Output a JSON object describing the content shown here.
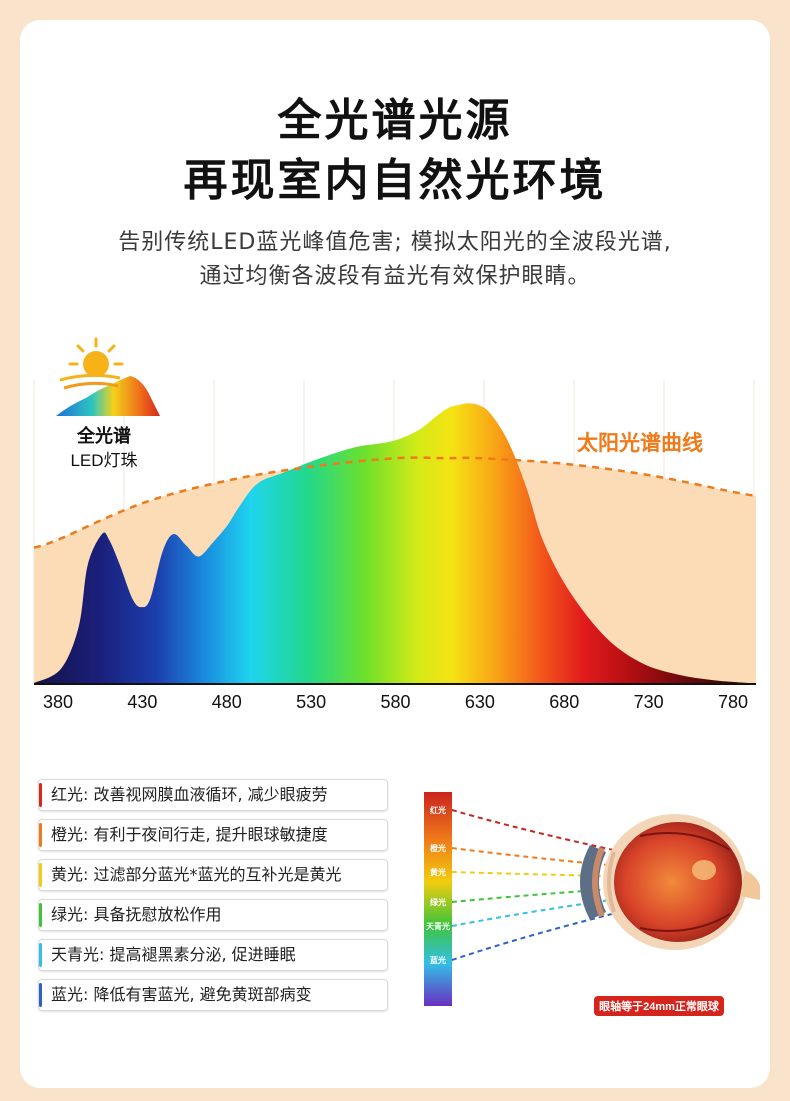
{
  "header": {
    "title_line1": "全光谱光源",
    "title_line2": "再现室内自然光环境",
    "subtitle_line1": "告别传统LED蓝光峰值危害; 模拟太阳光的全波段光谱,",
    "subtitle_line2": "通过均衡各波段有益光有效保护眼睛。"
  },
  "badge": {
    "line1": "全光谱",
    "line2": "LED灯珠"
  },
  "colors": {
    "page_bg": "#f9e3cb",
    "sun_curve": "#f07a1a",
    "sun_fill": "#fbdcb6",
    "sun_label": "#f07a1a"
  },
  "chart_data": {
    "type": "area",
    "x_ticks": [
      380,
      430,
      480,
      530,
      580,
      630,
      680,
      730,
      780
    ],
    "xlim": [
      380,
      780
    ],
    "ylim": [
      0,
      100
    ],
    "series": [
      {
        "name": "",
        "role": "full-spectrum LED",
        "x": [
          380,
          395,
          405,
          410,
          418,
          422,
          428,
          435,
          440,
          445,
          452,
          458,
          465,
          472,
          480,
          488,
          495,
          505,
          520,
          540,
          560,
          580,
          595,
          605,
          612,
          618,
          622,
          628,
          635,
          645,
          655,
          665,
          680,
          700,
          720,
          740,
          760,
          780
        ],
        "y": [
          0,
          5,
          20,
          42,
          53,
          51,
          42,
          30,
          27,
          30,
          47,
          53,
          49,
          45,
          50,
          56,
          63,
          71,
          75,
          80,
          84,
          86,
          90,
          95,
          98,
          99,
          99.5,
          99,
          96,
          86,
          70,
          50,
          32,
          16,
          7,
          3,
          1,
          0
        ]
      },
      {
        "name": "太阳光谱曲线",
        "role": "sunlight",
        "x": [
          380,
          430,
          480,
          530,
          580,
          610,
          630,
          680,
          730,
          780
        ],
        "y": [
          51,
          64,
          72,
          77,
          80,
          80,
          80,
          78,
          74,
          68
        ]
      }
    ],
    "annotations": [
      "太阳光谱曲线"
    ]
  },
  "legend": [
    {
      "text": "红光: 改善视网膜血液循环, 减少眼疲劳",
      "color": "#d72a1f"
    },
    {
      "text": "橙光: 有利于夜间行走, 提升眼球敏捷度",
      "color": "#f07a1a"
    },
    {
      "text": "黄光: 过滤部分蓝光*蓝光的互补光是黄光",
      "color": "#f2cc0f"
    },
    {
      "text": "绿光: 具备抚慰放松作用",
      "color": "#3fc43a"
    },
    {
      "text": "天青光: 提高褪黑素分泌, 促进睡眠",
      "color": "#33bfe6"
    },
    {
      "text": "蓝光: 降低有害蓝光, 避免黄斑部病变",
      "color": "#2c62c9"
    }
  ],
  "eye_diagram": {
    "bands": [
      {
        "label": "红光",
        "color": "#c8241d"
      },
      {
        "label": "橙光",
        "color": "#f07a1a"
      },
      {
        "label": "黄光",
        "color": "#f2cc0f"
      },
      {
        "label": "绿光",
        "color": "#3fc43a"
      },
      {
        "label": "天青光",
        "color": "#33bfe6"
      },
      {
        "label": "蓝光",
        "color": "#2c62c9"
      }
    ],
    "caption": "眼轴等于24mm正常眼球"
  }
}
